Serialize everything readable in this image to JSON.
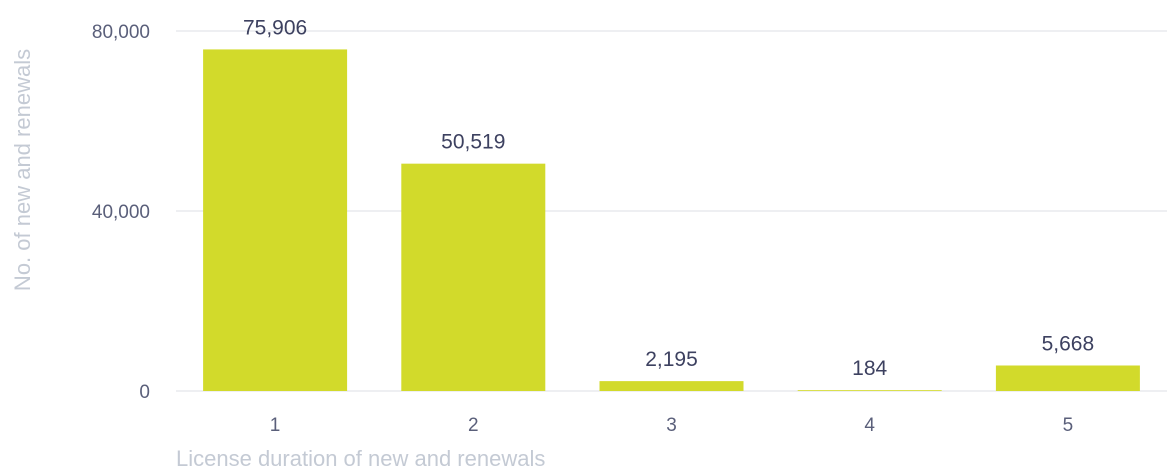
{
  "chart_data": {
    "type": "bar",
    "categories": [
      "1",
      "2",
      "3",
      "4",
      "5"
    ],
    "values": [
      75906,
      50519,
      2195,
      184,
      5668
    ],
    "data_labels": [
      "75,906",
      "50,519",
      "2,195",
      "184",
      "5,668"
    ],
    "xlabel": "License duration of new and renewals",
    "ylabel": "No. of new and renewals",
    "ylim": [
      0,
      80000
    ],
    "yticks": [
      0,
      40000,
      80000
    ],
    "ytick_labels": [
      "0",
      "40,000",
      "80,000"
    ],
    "grid": true,
    "legend": "none",
    "colors": {
      "bar": "#d2da2b",
      "grid": "#dcdfe4",
      "tick_text": "#5a5f7a",
      "data_label_text": "#3d4160",
      "axis_title_text": "#c4cad4"
    }
  }
}
